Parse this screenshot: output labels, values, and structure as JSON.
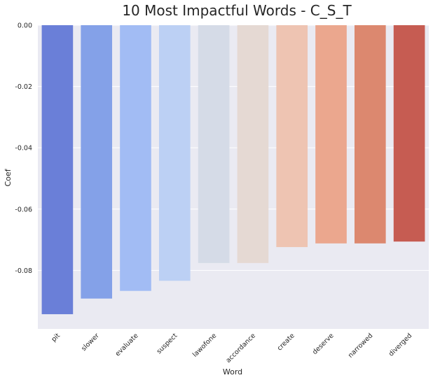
{
  "chart_data": {
    "type": "bar",
    "title": "10 Most Impactful Words - C_S_T",
    "xlabel": "Word",
    "ylabel": "Coef",
    "categories": [
      "pit",
      "slower",
      "evaluate",
      "suspect",
      "lawofone",
      "accordance",
      "create",
      "deserve",
      "narrowed",
      "diverged"
    ],
    "values": [
      -0.0943,
      -0.0892,
      -0.0867,
      -0.0834,
      -0.0776,
      -0.0776,
      -0.0724,
      -0.0712,
      -0.0712,
      -0.0706
    ],
    "colors": [
      "#6a7fd8",
      "#84a1e8",
      "#a2bcf4",
      "#bcd0f4",
      "#d5dbe7",
      "#e5d9d3",
      "#eec4b2",
      "#eba78e",
      "#dc886f",
      "#c65c52"
    ],
    "yticks": [
      "0.00",
      "-0.02",
      "-0.04",
      "-0.06",
      "-0.08"
    ],
    "ytick_values": [
      0,
      -0.02,
      -0.04,
      -0.06,
      -0.08
    ],
    "ylim": [
      -0.0991,
      0.0
    ],
    "grid": true,
    "background": "#eaeaf2",
    "grid_color": "#ffffff"
  }
}
